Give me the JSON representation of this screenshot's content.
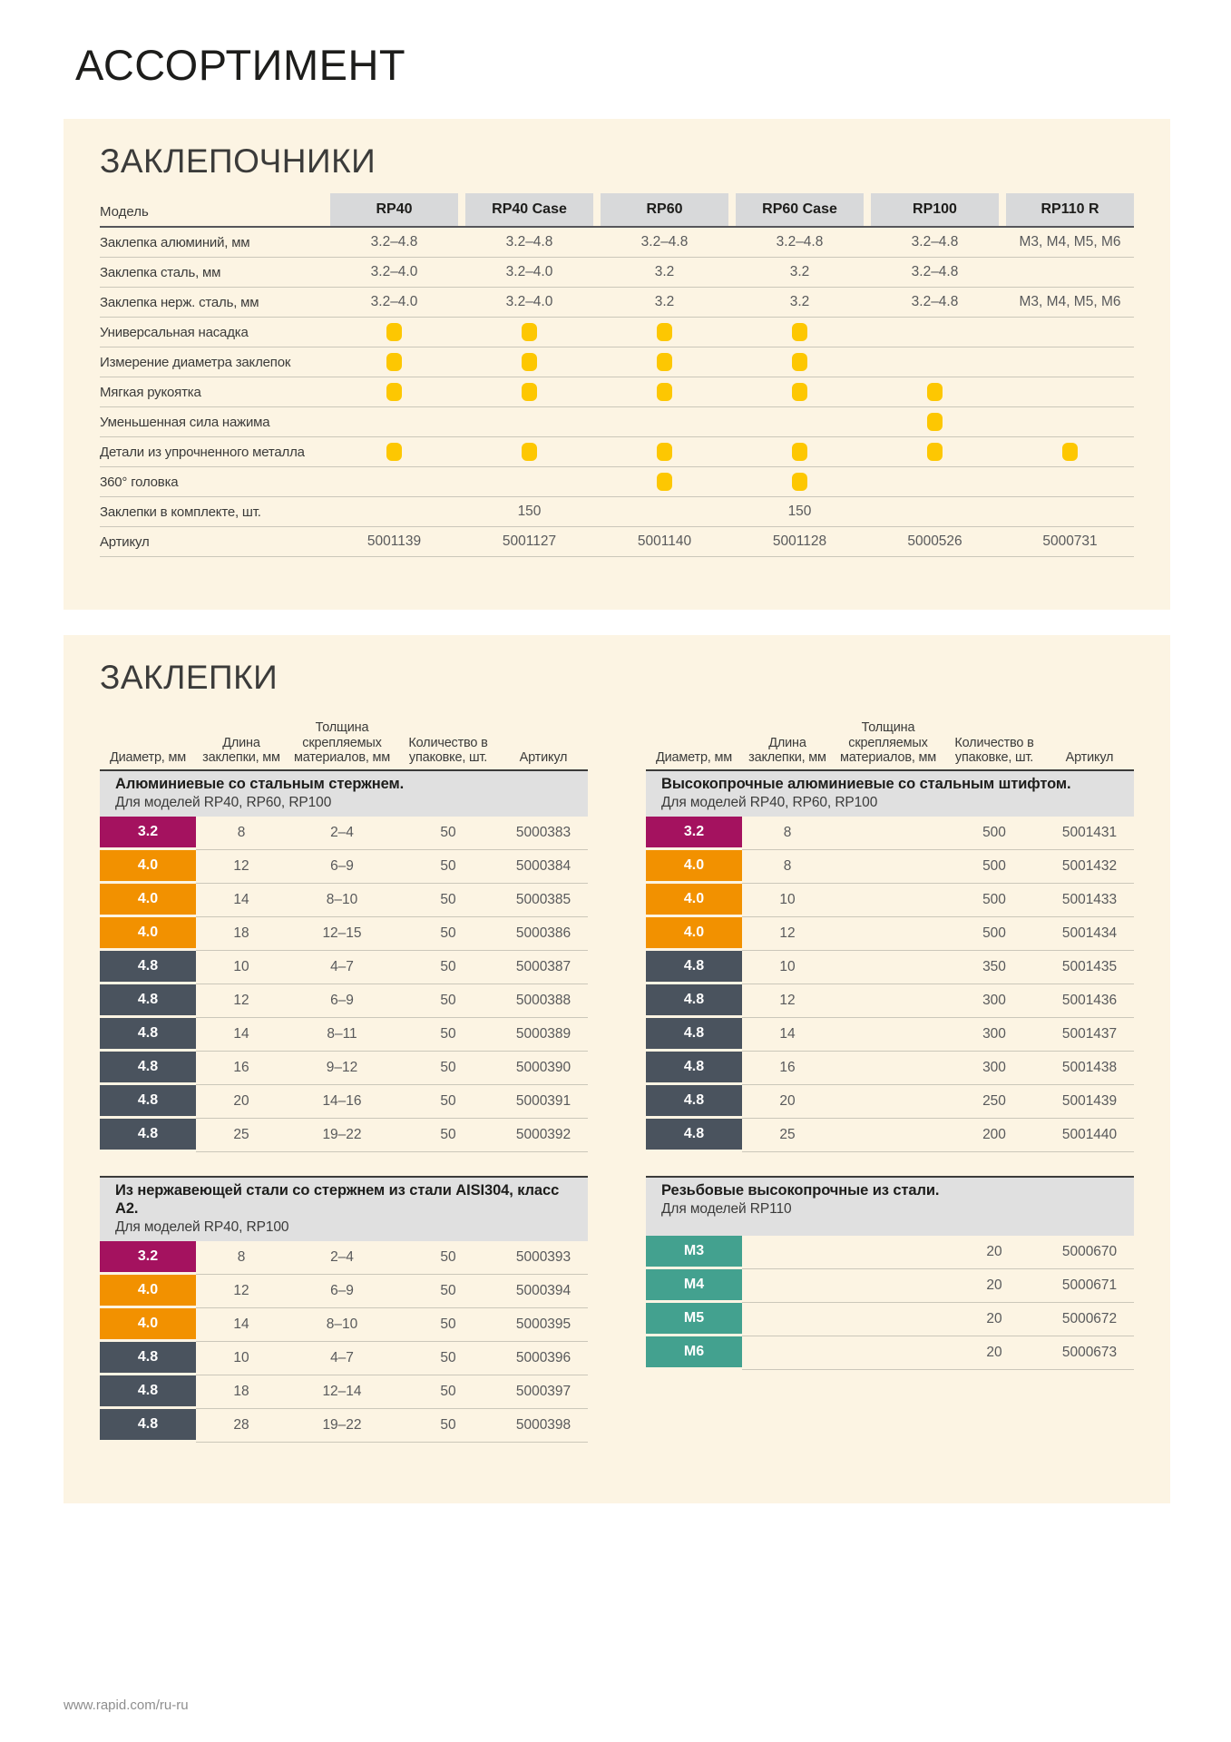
{
  "page": {
    "title": "АССОРТИМЕНТ",
    "footer_url": "www.rapid.com/ru-ru"
  },
  "colors": {
    "panel_background": "#FCF4E3",
    "header_cell_gray": "#D8D9DA",
    "band_gray": "#E0E0E0",
    "check_yellow": "#FDC702",
    "diameter_magenta": "#A4125F",
    "diameter_orange": "#F29100",
    "diameter_slate": "#4A535E",
    "diameter_teal": "#43A18F",
    "value_text": "#58595B"
  },
  "riveters": {
    "heading": "ЗАКЛЕПОЧНИКИ",
    "model_label": "Модель",
    "columns": [
      "RP40",
      "RP40 Case",
      "RP60",
      "RP60 Case",
      "RP100",
      "RP110 R"
    ],
    "rows": [
      {
        "label": "Заклепка алюминий, мм",
        "type": "text",
        "values": [
          "3.2–4.8",
          "3.2–4.8",
          "3.2–4.8",
          "3.2–4.8",
          "3.2–4.8",
          "M3, M4, M5, M6"
        ]
      },
      {
        "label": "Заклепка сталь, мм",
        "type": "text",
        "values": [
          "3.2–4.0",
          "3.2–4.0",
          "3.2",
          "3.2",
          "3.2–4.8",
          ""
        ]
      },
      {
        "label": "Заклепка нерж. сталь, мм",
        "type": "text",
        "values": [
          "3.2–4.0",
          "3.2–4.0",
          "3.2",
          "3.2",
          "3.2–4.8",
          "M3, M4, M5, M6"
        ]
      },
      {
        "label": "Универсальная насадка",
        "type": "dot",
        "values": [
          true,
          true,
          true,
          true,
          false,
          false
        ]
      },
      {
        "label": "Измерение диаметра заклепок",
        "type": "dot",
        "values": [
          true,
          true,
          true,
          true,
          false,
          false
        ]
      },
      {
        "label": "Мягкая рукоятка",
        "type": "dot",
        "values": [
          true,
          true,
          true,
          true,
          true,
          false
        ]
      },
      {
        "label": "Уменьшенная сила нажима",
        "type": "dot",
        "values": [
          false,
          false,
          false,
          false,
          true,
          false
        ]
      },
      {
        "label": "Детали из упрочненного металла",
        "type": "dot",
        "values": [
          true,
          true,
          true,
          true,
          true,
          true
        ]
      },
      {
        "label": "360° головка",
        "type": "dot",
        "values": [
          false,
          false,
          true,
          true,
          false,
          false
        ]
      },
      {
        "label": "Заклепки в комплекте, шт.",
        "type": "text",
        "values": [
          "",
          "150",
          "",
          "150",
          "",
          ""
        ]
      },
      {
        "label": "Артикул",
        "type": "text",
        "values": [
          "5001139",
          "5001127",
          "5001140",
          "5001128",
          "5000526",
          "5000731"
        ]
      }
    ]
  },
  "rivets": {
    "heading": "ЗАКЛЕПКИ",
    "col_headers": [
      "Диаметр, мм",
      "Длина заклепки, мм",
      "Толщина скрепляемых материалов, мм",
      "Количество в упаковке, шт.",
      "Артикул"
    ],
    "diameter_colors": {
      "3.2": "#A4125F",
      "4.0": "#F29100",
      "4.8": "#4A535E",
      "M": "#43A18F"
    },
    "tables": [
      {
        "title": "Алюминиевые со стальным стержнем.",
        "subtitle": "Для моделей RP40, RP60, RP100",
        "show_column_headers": true,
        "rows": [
          [
            "3.2",
            "8",
            "2–4",
            "50",
            "5000383"
          ],
          [
            "4.0",
            "12",
            "6–9",
            "50",
            "5000384"
          ],
          [
            "4.0",
            "14",
            "8–10",
            "50",
            "5000385"
          ],
          [
            "4.0",
            "18",
            "12–15",
            "50",
            "5000386"
          ],
          [
            "4.8",
            "10",
            "4–7",
            "50",
            "5000387"
          ],
          [
            "4.8",
            "12",
            "6–9",
            "50",
            "5000388"
          ],
          [
            "4.8",
            "14",
            "8–11",
            "50",
            "5000389"
          ],
          [
            "4.8",
            "16",
            "9–12",
            "50",
            "5000390"
          ],
          [
            "4.8",
            "20",
            "14–16",
            "50",
            "5000391"
          ],
          [
            "4.8",
            "25",
            "19–22",
            "50",
            "5000392"
          ]
        ]
      },
      {
        "title": "Высокопрочные алюминиевые со стальным штифтом.",
        "subtitle": "Для моделей RP40, RP60, RP100",
        "show_column_headers": true,
        "rows": [
          [
            "3.2",
            "8",
            "",
            "500",
            "5001431"
          ],
          [
            "4.0",
            "8",
            "",
            "500",
            "5001432"
          ],
          [
            "4.0",
            "10",
            "",
            "500",
            "5001433"
          ],
          [
            "4.0",
            "12",
            "",
            "500",
            "5001434"
          ],
          [
            "4.8",
            "10",
            "",
            "350",
            "5001435"
          ],
          [
            "4.8",
            "12",
            "",
            "300",
            "5001436"
          ],
          [
            "4.8",
            "14",
            "",
            "300",
            "5001437"
          ],
          [
            "4.8",
            "16",
            "",
            "300",
            "5001438"
          ],
          [
            "4.8",
            "20",
            "",
            "250",
            "5001439"
          ],
          [
            "4.8",
            "25",
            "",
            "200",
            "5001440"
          ]
        ]
      },
      {
        "title": "Из нержавеющей стали со стержнем из стали AISI304, класс А2.",
        "subtitle": "Для моделей RP40, RP100",
        "show_column_headers": false,
        "rows": [
          [
            "3.2",
            "8",
            "2–4",
            "50",
            "5000393"
          ],
          [
            "4.0",
            "12",
            "6–9",
            "50",
            "5000394"
          ],
          [
            "4.0",
            "14",
            "8–10",
            "50",
            "5000395"
          ],
          [
            "4.8",
            "10",
            "4–7",
            "50",
            "5000396"
          ],
          [
            "4.8",
            "18",
            "12–14",
            "50",
            "5000397"
          ],
          [
            "4.8",
            "28",
            "19–22",
            "50",
            "5000398"
          ]
        ]
      },
      {
        "title": "Резьбовые высокопрочные из стали.",
        "subtitle": "Для моделей RP110",
        "show_column_headers": false,
        "rows": [
          [
            "M3",
            "",
            "",
            "20",
            "5000670"
          ],
          [
            "M4",
            "",
            "",
            "20",
            "5000671"
          ],
          [
            "M5",
            "",
            "",
            "20",
            "5000672"
          ],
          [
            "M6",
            "",
            "",
            "20",
            "5000673"
          ]
        ]
      }
    ]
  }
}
